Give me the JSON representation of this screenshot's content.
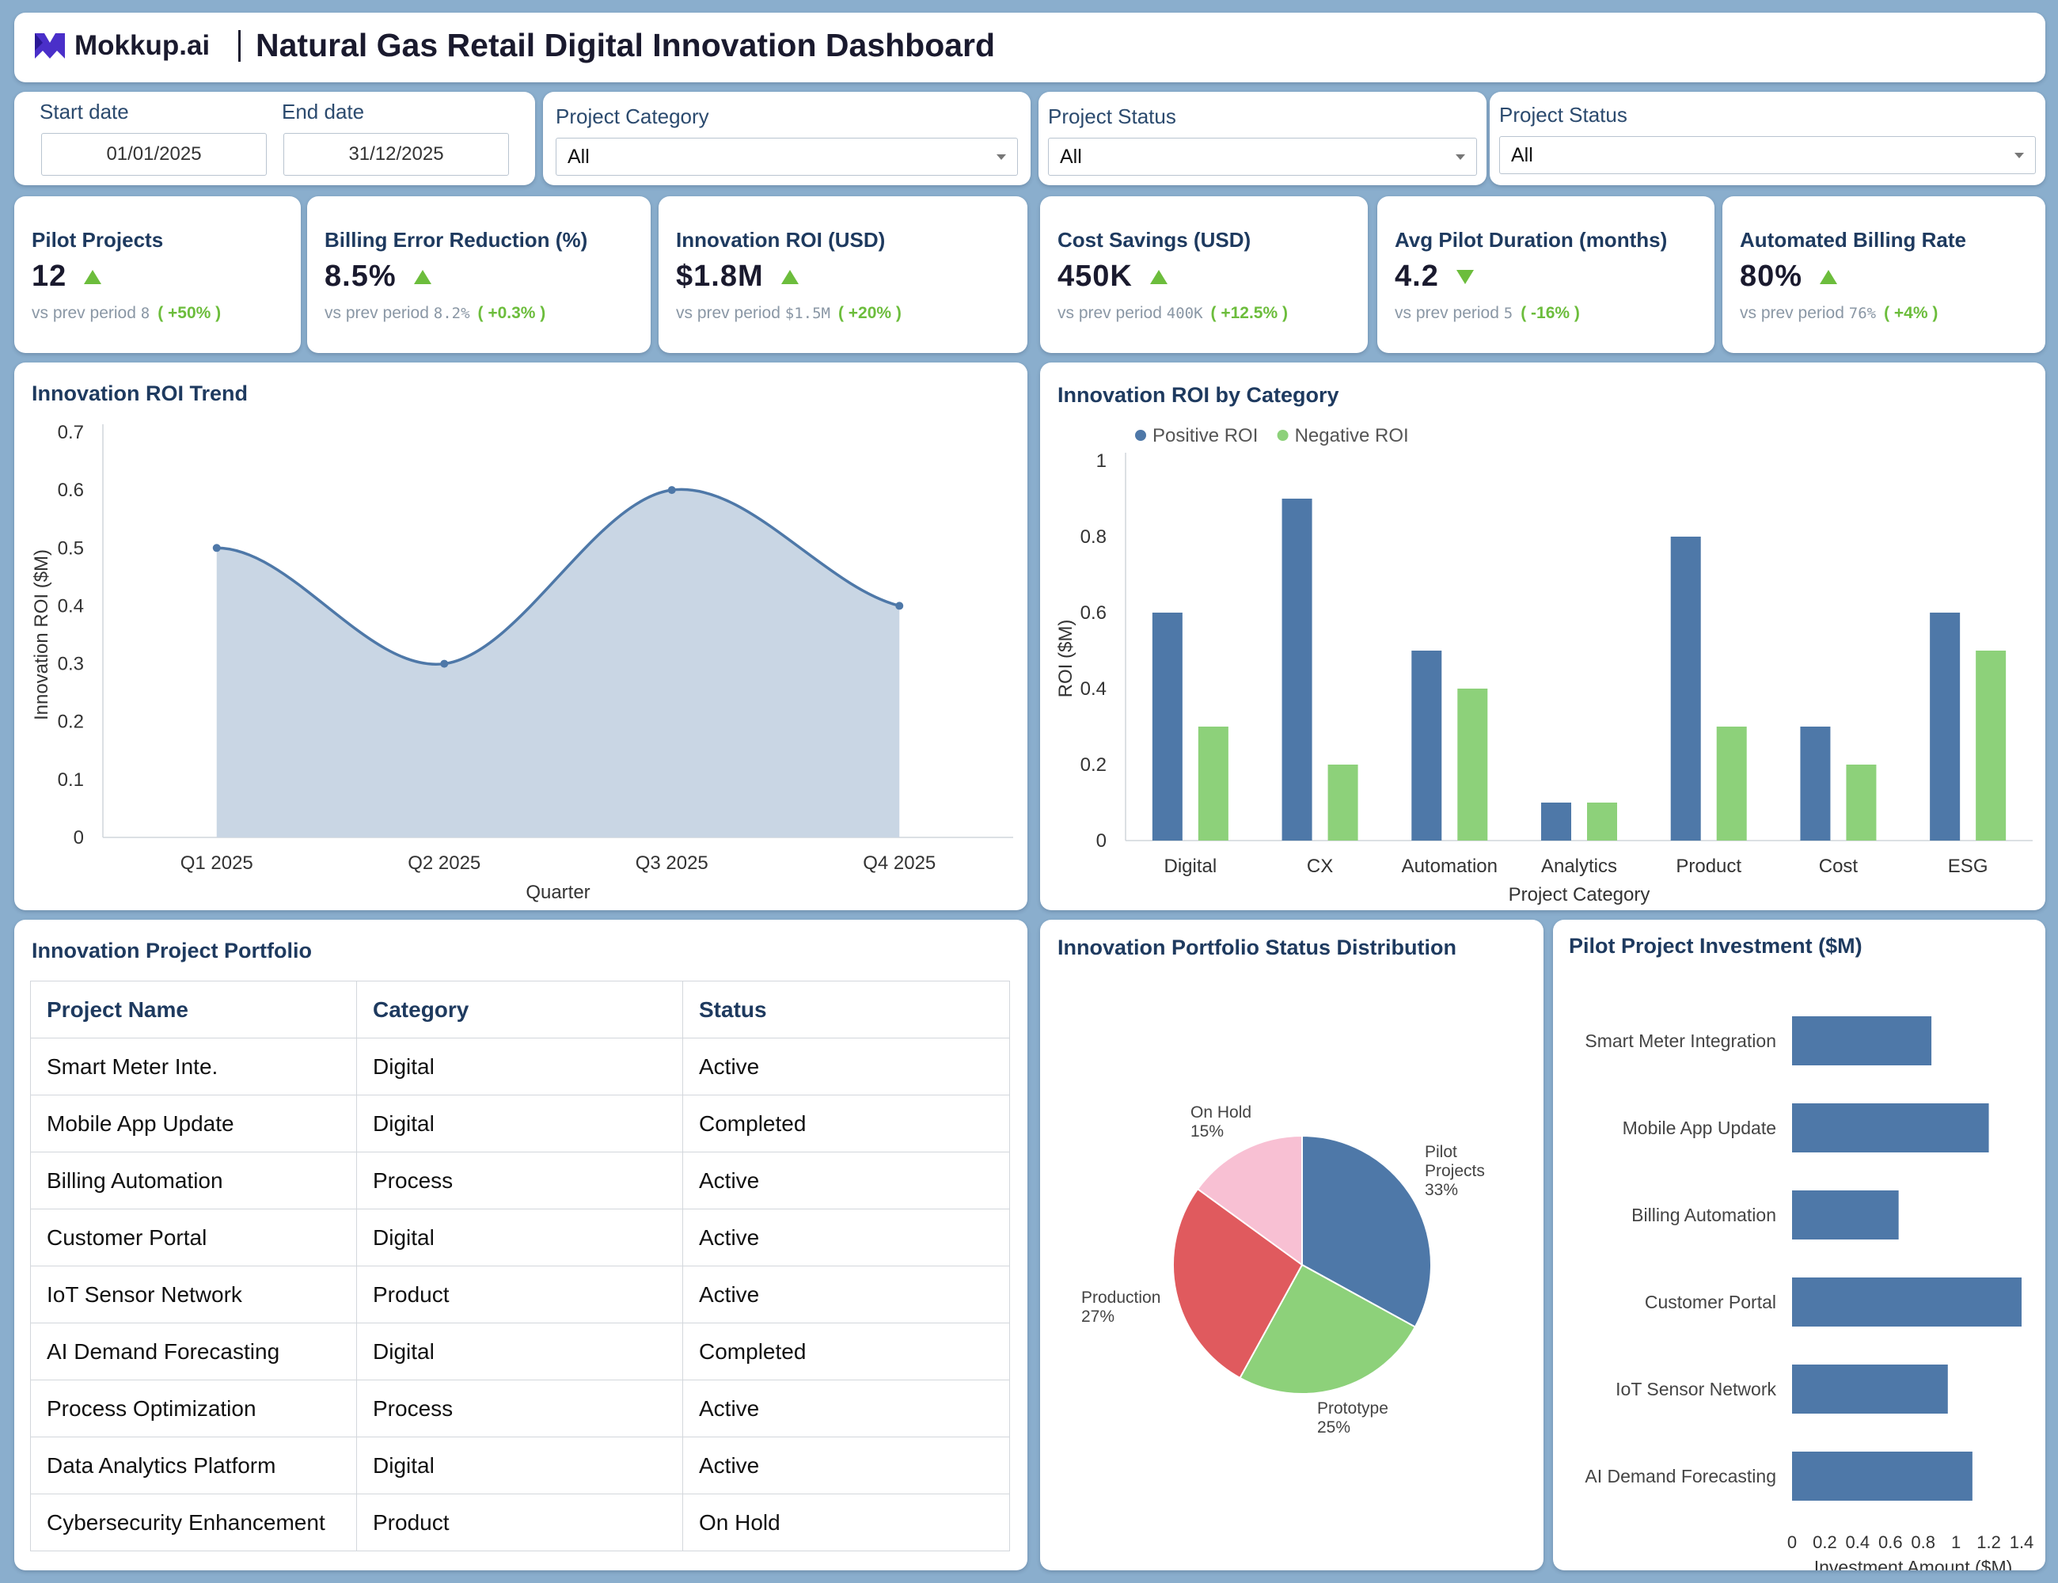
{
  "header": {
    "brand": "Mokkup.ai",
    "title": "Natural Gas Retail Digital Innovation Dashboard"
  },
  "filters": {
    "start_label": "Start date",
    "start_value": "01/01/2025",
    "end_label": "End date",
    "end_value": "31/12/2025",
    "category_label": "Project Category",
    "category_value": "All",
    "status_label": "Project Status",
    "status_value": "All",
    "status2_label": "Project Status",
    "status2_value": "All"
  },
  "kpis": [
    {
      "title": "Pilot Projects",
      "value": "12",
      "trend": "up",
      "prev_label": "vs prev period",
      "prev": "8",
      "delta": "( +50% )"
    },
    {
      "title": "Billing Error Reduction (%)",
      "value": "8.5%",
      "trend": "up",
      "prev_label": "vs prev period",
      "prev": "8.2%",
      "delta": "( +0.3% )"
    },
    {
      "title": "Innovation ROI (USD)",
      "value": "$1.8M",
      "trend": "up",
      "prev_label": "vs prev period",
      "prev": "$1.5M",
      "delta": "( +20% )"
    },
    {
      "title": "Cost Savings (USD)",
      "value": "450K",
      "trend": "up",
      "prev_label": "vs prev period",
      "prev": "400K",
      "delta": "( +12.5% )"
    },
    {
      "title": "Avg Pilot Duration (months)",
      "value": "4.2",
      "trend": "down",
      "prev_label": "vs prev period",
      "prev": "5",
      "delta": "( -16% )"
    },
    {
      "title": "Automated Billing Rate",
      "value": "80%",
      "trend": "up",
      "prev_label": "vs prev period",
      "prev": "76%",
      "delta": "( +4% )"
    }
  ],
  "colors": {
    "primary": "#4e78a8",
    "green": "#8dd17a",
    "red": "#e05a5e",
    "pink": "#f8c0d3",
    "trend_green": "#6cbd3c",
    "area_fill": "#c9d6e4"
  },
  "roi_trend": {
    "title": "Innovation ROI Trend",
    "chart_data": {
      "type": "area",
      "x": [
        "Q1 2025",
        "Q2 2025",
        "Q3 2025",
        "Q4 2025"
      ],
      "values": [
        0.5,
        0.3,
        0.6,
        0.4
      ],
      "xlabel": "Quarter",
      "ylabel": "Innovation ROI ($M)",
      "ylim": [
        0,
        0.7
      ],
      "yticks": [
        "0",
        "0.1",
        "0.2",
        "0.3",
        "0.4",
        "0.5",
        "0.6",
        "0.7"
      ]
    }
  },
  "roi_category": {
    "title": "Innovation ROI by Category",
    "chart_data": {
      "type": "bar",
      "categories": [
        "Digital",
        "CX",
        "Automation",
        "Analytics",
        "Product",
        "Cost",
        "ESG"
      ],
      "series": [
        {
          "name": "Positive ROI",
          "values": [
            0.6,
            0.9,
            0.5,
            0.1,
            0.8,
            0.3,
            0.6
          ]
        },
        {
          "name": "Negative ROI",
          "values": [
            0.3,
            0.2,
            0.4,
            0.1,
            0.3,
            0.2,
            0.5
          ]
        }
      ],
      "xlabel": "Project Category",
      "ylabel": "ROI ($M)",
      "ylim": [
        0,
        1
      ],
      "yticks": [
        "0",
        "0.2",
        "0.4",
        "0.6",
        "0.8",
        "1"
      ],
      "legend": "top-left"
    }
  },
  "portfolio": {
    "title": "Innovation Project Portfolio",
    "columns": [
      "Project Name",
      "Category",
      "Status"
    ],
    "rows": [
      [
        "Smart Meter Inte.",
        "Digital",
        "Active"
      ],
      [
        "Mobile App Update",
        "Digital",
        "Completed"
      ],
      [
        "Billing Automation",
        "Process",
        "Active"
      ],
      [
        "Customer Portal",
        "Digital",
        "Active"
      ],
      [
        "IoT Sensor Network",
        "Product",
        "Active"
      ],
      [
        "AI Demand Forecasting",
        "Digital",
        "Completed"
      ],
      [
        "Process Optimization",
        "Process",
        "Active"
      ],
      [
        "Data Analytics Platform",
        "Digital",
        "Active"
      ],
      [
        "Cybersecurity Enhancement",
        "Product",
        "On Hold"
      ]
    ]
  },
  "status_dist": {
    "title": "Innovation Portfolio Status Distribution",
    "chart_data": {
      "type": "pie",
      "slices": [
        {
          "label": "Pilot Projects",
          "pct": "33%",
          "value": 33
        },
        {
          "label": "Prototype",
          "pct": "25%",
          "value": 25
        },
        {
          "label": "Production",
          "pct": "27%",
          "value": 27
        },
        {
          "label": "On Hold",
          "pct": "15%",
          "value": 15
        }
      ]
    }
  },
  "investment": {
    "title": "Pilot Project Investment ($M)",
    "chart_data": {
      "type": "bar",
      "orientation": "horizontal",
      "categories": [
        "Smart Meter Integration",
        "Mobile App Update",
        "Billing Automation",
        "Customer Portal",
        "IoT Sensor Network",
        "AI Demand Forecasting"
      ],
      "values": [
        0.85,
        1.2,
        0.65,
        1.4,
        0.95,
        1.1
      ],
      "xlabel": "Investment Amount ($M)",
      "xlim": [
        0,
        1.4
      ],
      "xticks": [
        "0",
        "0.2",
        "0.4",
        "0.6",
        "0.8",
        "1",
        "1.2",
        "1.4"
      ]
    }
  }
}
